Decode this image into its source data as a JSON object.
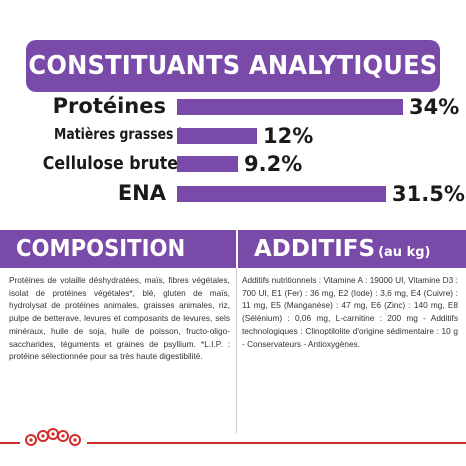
{
  "banner": {
    "title": "CONSTITUANTS ANALYTIQUES"
  },
  "nutrients": [
    {
      "label": "Protéines",
      "value": "34%",
      "percent": 34
    },
    {
      "label": "Matières grasses brutes",
      "value": "12%",
      "percent": 12
    },
    {
      "label": "Cellulose brute",
      "value": "9.2%",
      "percent": 9.2
    },
    {
      "label": "ENA",
      "value": "31.5%",
      "percent": 31.5
    }
  ],
  "composition": {
    "title": "COMPOSITION",
    "text": "Protéines de volaille déshydratées, maïs, fibres végétales, isolat de protéines végétales*, blé, gluten de maïs, hydrolysat de protéines animales, graisses animales, riz, pulpe de betterave, levures et composants de levures, sels minéraux, huile de soja, huile de poisson, fructo-oligo-saccharides, téguments et graines de psyllium. *L.I.P. : protéine sélectionnée pour sa très haute digestibilité."
  },
  "additifs": {
    "title": "ADDITIFS",
    "subtitle": "(au kg)",
    "text": "Additifs nutritionnels : Vitamine A : 19000 UI, Vitamine D3 : 700 UI, E1 (Fer) : 36 mg, E2 (Iode) : 3,6 mg, E4 (Cuivre) : 11 mg, E5 (Manganèse) : 47 mg, E6 (Zinc) : 140 mg, E8 (Sélénium) : 0,06 mg, L-carnitine : 200 mg - Additifs technologiques : Clinoptilolite d'origine sédimentaire : 10 g - Conservateurs - Antioxygènes."
  },
  "colors": {
    "accent": "#7a4aa8",
    "brand_red": "#d22b2b",
    "text": "#1a1a1a"
  },
  "logo": {
    "icon": "royal-canin-crown-icon"
  }
}
